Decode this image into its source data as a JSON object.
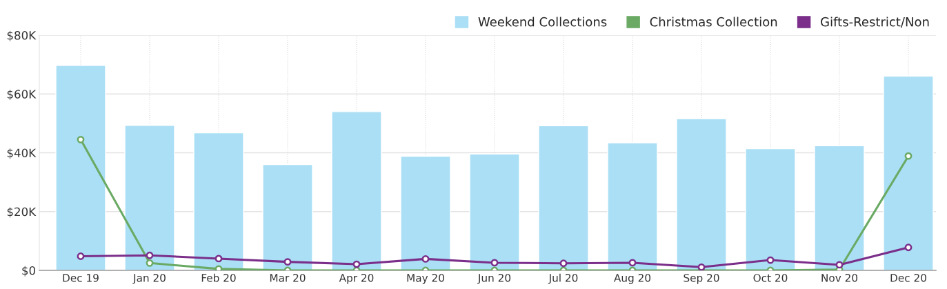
{
  "chart_data": {
    "type": "bar",
    "categories": [
      "Dec 19",
      "Jan 20",
      "Feb 20",
      "Mar 20",
      "Apr 20",
      "May 20",
      "Jun 20",
      "Jul 20",
      "Aug 20",
      "Sep 20",
      "Oct 20",
      "Nov 20",
      "Dec 20"
    ],
    "series": [
      {
        "name": "Weekend Collections",
        "color": "#aadff5",
        "values": [
          69.7,
          49.3,
          46.8,
          36.0,
          54.0,
          38.8,
          39.6,
          49.2,
          43.4,
          51.6,
          41.4,
          42.4,
          66.1
        ]
      },
      {
        "name": "Christmas Collection",
        "type": "line",
        "color": "#6aaa64",
        "values": [
          44.5,
          2.5,
          0.5,
          0,
          0,
          0,
          0,
          0,
          0,
          0,
          0,
          0.3,
          38.9
        ]
      },
      {
        "name": "Gifts-Restrict/Non",
        "type": "line",
        "color": "#7b2f8a",
        "values": [
          4.8,
          5.1,
          4.0,
          2.9,
          2.1,
          3.9,
          2.6,
          2.4,
          2.6,
          1.1,
          3.5,
          1.9,
          7.8
        ]
      }
    ],
    "ylim": [
      0,
      80
    ],
    "yticks": [
      {
        "value": 0,
        "label": "$0"
      },
      {
        "value": 20,
        "label": "$20K"
      },
      {
        "value": 40,
        "label": "$40K"
      },
      {
        "value": 60,
        "label": "$60K"
      },
      {
        "value": 80,
        "label": "$80K"
      }
    ],
    "grid": true,
    "legend": "top right",
    "marker": "circle",
    "line_style": "solid"
  }
}
